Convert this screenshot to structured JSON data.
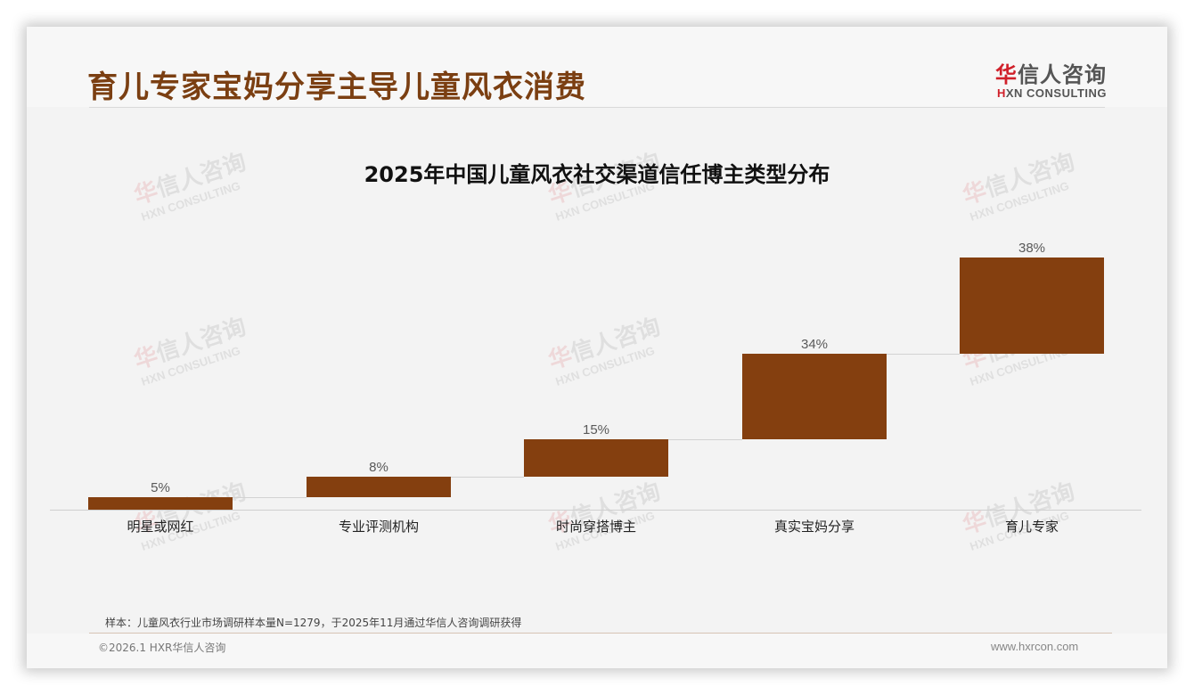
{
  "header": {
    "title": "育儿专家宝妈分享主导儿童风衣消费",
    "logo_cn_first": "华",
    "logo_cn_rest": "信人咨询",
    "logo_en_first": "H",
    "logo_en_rest": "XN CONSULTING"
  },
  "watermark": {
    "cn_first": "华",
    "cn_rest": "信人咨询",
    "en": "HXN CONSULTING"
  },
  "chart_data": {
    "type": "bar",
    "subtype": "waterfall",
    "title": "2025年中国儿童风衣社交渠道信任博主类型分布",
    "xlabel": "",
    "ylabel": "",
    "categories": [
      "明星或网红",
      "专业评测机构",
      "时尚穿搭博主",
      "真实宝妈分享",
      "育儿专家"
    ],
    "values": [
      5,
      8,
      15,
      34,
      38
    ],
    "value_labels": [
      "5%",
      "8%",
      "15%",
      "34%",
      "38%"
    ],
    "unit": "%",
    "ylim": [
      0,
      100
    ],
    "grid": false,
    "legend": "none",
    "bar_color": "#843f0f"
  },
  "footer": {
    "note": "样本：儿童风衣行业市场调研样本量N=1279，于2025年11月通过华信人咨询调研获得",
    "copyright": "©2026.1 HXR华信人咨询",
    "website": "www.hxrcon.com"
  }
}
